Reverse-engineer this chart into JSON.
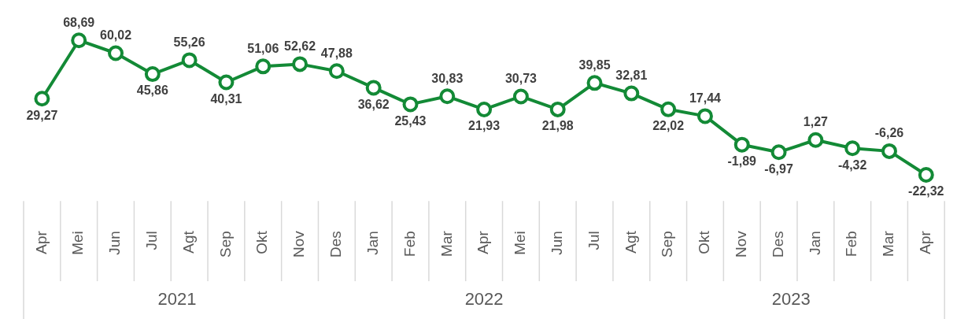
{
  "chart_data": {
    "type": "line",
    "categories": [
      "Apr",
      "Mei",
      "Jun",
      "Jul",
      "Agt",
      "Sep",
      "Okt",
      "Nov",
      "Des",
      "Jan",
      "Feb",
      "Mar",
      "Apr",
      "Mei",
      "Jun",
      "Jul",
      "Agt",
      "Sep",
      "Okt",
      "Nov",
      "Des",
      "Jan",
      "Feb",
      "Mar",
      "Apr"
    ],
    "series": [
      {
        "color": "#138a36",
        "values": [
          29.27,
          68.69,
          60.02,
          45.86,
          55.26,
          40.31,
          51.06,
          52.62,
          47.88,
          36.62,
          25.43,
          30.83,
          21.93,
          30.73,
          21.98,
          39.85,
          32.81,
          22.02,
          17.44,
          -1.89,
          -6.97,
          1.27,
          -4.32,
          -6.26,
          -22.32
        ],
        "value_labels": [
          "29,27",
          "68,69",
          "60,02",
          "45,86",
          "55,26",
          "40,31",
          "51,06",
          "52,62",
          "47,88",
          "36,62",
          "25,43",
          "30,83",
          "21,93",
          "30,73",
          "21,98",
          "39,85",
          "32,81",
          "22,02",
          "17,44",
          "-1,89",
          "-6,97",
          "1,27",
          "-4,32",
          "-6,26",
          "-22,32"
        ]
      }
    ],
    "annotations": [
      "2021",
      "2022",
      "2023"
    ],
    "marker": "circle",
    "line_style": "solid",
    "legend": false
  }
}
